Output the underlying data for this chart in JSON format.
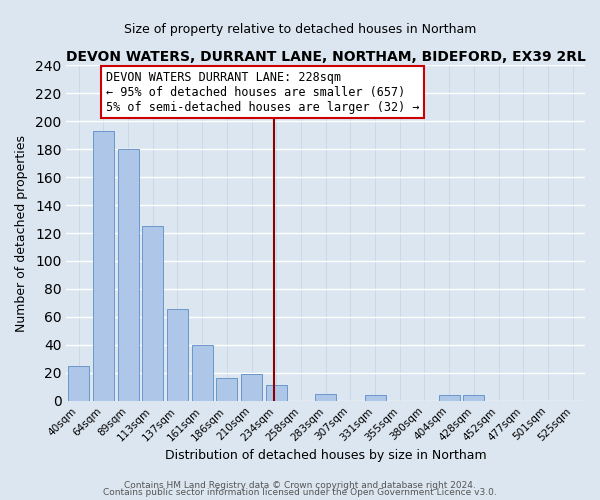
{
  "title": "DEVON WATERS, DURRANT LANE, NORTHAM, BIDEFORD, EX39 2RL",
  "subtitle": "Size of property relative to detached houses in Northam",
  "xlabel": "Distribution of detached houses by size in Northam",
  "ylabel": "Number of detached properties",
  "bar_labels": [
    "40sqm",
    "64sqm",
    "89sqm",
    "113sqm",
    "137sqm",
    "161sqm",
    "186sqm",
    "210sqm",
    "234sqm",
    "258sqm",
    "283sqm",
    "307sqm",
    "331sqm",
    "355sqm",
    "380sqm",
    "404sqm",
    "428sqm",
    "452sqm",
    "477sqm",
    "501sqm",
    "525sqm"
  ],
  "bar_heights": [
    25,
    193,
    180,
    125,
    66,
    40,
    16,
    19,
    11,
    0,
    5,
    0,
    4,
    0,
    0,
    4,
    4,
    0,
    0,
    0,
    0
  ],
  "bar_color": "#aec6e8",
  "bar_edge_color": "#5b8dc4",
  "vline_color": "#8b0000",
  "vline_x_index": 8,
  "annotation_title": "DEVON WATERS DURRANT LANE: 228sqm",
  "annotation_line1": "← 95% of detached houses are smaller (657)",
  "annotation_line2": "5% of semi-detached houses are larger (32) →",
  "annotation_box_facecolor": "#ffffff",
  "annotation_box_edgecolor": "#cc0000",
  "ylim": [
    0,
    240
  ],
  "yticks": [
    0,
    20,
    40,
    60,
    80,
    100,
    120,
    140,
    160,
    180,
    200,
    220,
    240
  ],
  "grid_color": "#c8d4e8",
  "bg_color": "#dce6f0",
  "footer1": "Contains HM Land Registry data © Crown copyright and database right 2024.",
  "footer2": "Contains public sector information licensed under the Open Government Licence v3.0.",
  "title_fontsize": 10,
  "subtitle_fontsize": 9
}
